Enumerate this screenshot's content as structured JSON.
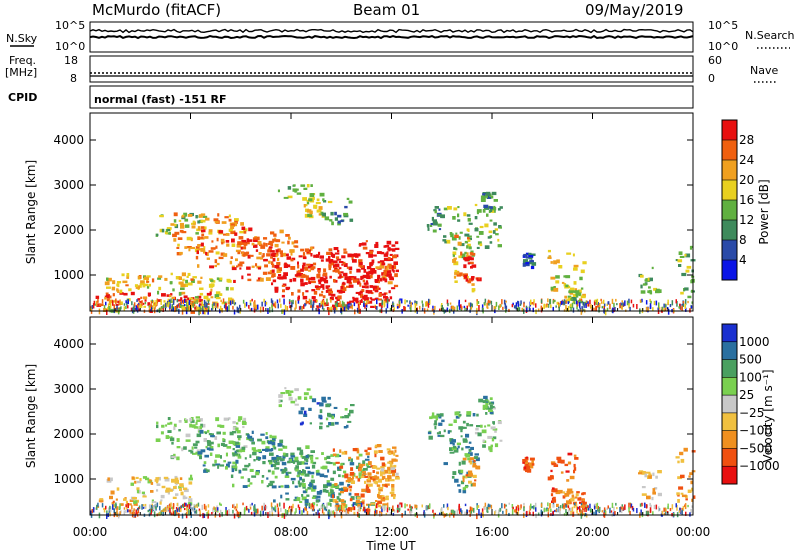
{
  "header": {
    "station": "McMurdo (fitACF)",
    "beam": "Beam 01",
    "date": "09/May/2019"
  },
  "sky_panel": {
    "left_label": "N.Sky",
    "right_label": "N.Search",
    "ticks_left": [
      "10^5",
      "10^0"
    ],
    "ticks_right": [
      "10^5",
      "10^0"
    ]
  },
  "freq_panel": {
    "left_label_1": "Freq.",
    "left_label_2": "[MHz]",
    "right_label": "Nave",
    "ticks_left": [
      "18",
      "8"
    ],
    "ticks_right": [
      "60",
      "0"
    ]
  },
  "cpid": {
    "label": "CPID",
    "text": "normal (fast) -151 RF"
  },
  "colors": {
    "power": [
      "#0a14e6",
      "#2a4aa8",
      "#3e8a5c",
      "#60b040",
      "#e8d020",
      "#f0a020",
      "#f06010",
      "#e81010"
    ],
    "velocity": [
      "#e81010",
      "#f05010",
      "#f09020",
      "#f0c040",
      "#c8c8c8",
      "#7ad050",
      "#4aa060",
      "#2a70a0",
      "#1a30d0"
    ]
  },
  "chart_data": [
    {
      "type": "heatmap",
      "name": "power",
      "ylabel": "Slant Range [km]",
      "xlabel": "",
      "xlim_hours": [
        0,
        24
      ],
      "ylim": [
        200,
        4600
      ],
      "yticks": [
        1000,
        2000,
        3000,
        4000
      ],
      "colorbar_label": "Power [dB]",
      "colorbar_ticks": [
        "28",
        "24",
        "20",
        "16",
        "12",
        "8",
        "4"
      ],
      "regions": [
        {
          "t": 0.2,
          "r": 420,
          "w": 4.6,
          "h": 220,
          "c": 7
        },
        {
          "t": 0.5,
          "r": 620,
          "w": 5.2,
          "h": 380,
          "c": 4
        },
        {
          "t": 0.6,
          "r": 900,
          "w": 3.4,
          "h": 160,
          "c": 5
        },
        {
          "t": 2.4,
          "r": 2150,
          "w": 2.2,
          "h": 250,
          "c": 3
        },
        {
          "t": 3.2,
          "r": 1950,
          "w": 3.0,
          "h": 450,
          "c": 5
        },
        {
          "t": 4.2,
          "r": 1650,
          "w": 3.6,
          "h": 450,
          "c": 6
        },
        {
          "t": 5.6,
          "r": 1350,
          "w": 3.2,
          "h": 500,
          "c": 6
        },
        {
          "t": 7.2,
          "r": 1050,
          "w": 2.8,
          "h": 550,
          "c": 7
        },
        {
          "t": 8.4,
          "r": 920,
          "w": 2.8,
          "h": 650,
          "c": 7
        },
        {
          "t": 9.6,
          "r": 1000,
          "w": 2.4,
          "h": 750,
          "c": 7
        },
        {
          "t": 10.6,
          "r": 1100,
          "w": 1.6,
          "h": 700,
          "c": 7
        },
        {
          "t": 11.2,
          "r": 1050,
          "w": 1.0,
          "h": 300,
          "c": 6
        },
        {
          "t": 7.4,
          "r": 2850,
          "w": 1.4,
          "h": 200,
          "c": 3
        },
        {
          "t": 8.3,
          "r": 2500,
          "w": 1.2,
          "h": 350,
          "c": 4
        },
        {
          "t": 9.2,
          "r": 2450,
          "w": 1.2,
          "h": 300,
          "c": 2
        },
        {
          "t": 13.4,
          "r": 2250,
          "w": 0.6,
          "h": 300,
          "c": 2
        },
        {
          "t": 14.0,
          "r": 1950,
          "w": 1.4,
          "h": 600,
          "c": 3
        },
        {
          "t": 14.4,
          "r": 1300,
          "w": 0.8,
          "h": 600,
          "c": 5
        },
        {
          "t": 14.8,
          "r": 1200,
          "w": 0.6,
          "h": 300,
          "c": 7
        },
        {
          "t": 15.3,
          "r": 2200,
          "w": 1.0,
          "h": 600,
          "c": 3
        },
        {
          "t": 15.6,
          "r": 2650,
          "w": 0.4,
          "h": 200,
          "c": 2
        },
        {
          "t": 18.2,
          "r": 1000,
          "w": 1.4,
          "h": 600,
          "c": 4
        },
        {
          "t": 18.8,
          "r": 600,
          "w": 0.8,
          "h": 200,
          "c": 3
        },
        {
          "t": 21.8,
          "r": 900,
          "w": 0.8,
          "h": 300,
          "c": 3
        },
        {
          "t": 23.3,
          "r": 1100,
          "w": 0.8,
          "h": 600,
          "c": 3
        },
        {
          "t": 17.2,
          "r": 1350,
          "w": 0.4,
          "h": 150,
          "c": 1
        }
      ]
    },
    {
      "type": "heatmap",
      "name": "velocity",
      "ylabel": "Slant Range [km]",
      "xlabel": "Time UT",
      "xlim_hours": [
        0,
        24
      ],
      "xticks": [
        "00:00",
        "04:00",
        "08:00",
        "12:00",
        "16:00",
        "20:00",
        "00:00"
      ],
      "ylim": [
        200,
        4600
      ],
      "yticks": [
        1000,
        2000,
        3000,
        4000
      ],
      "colorbar_label": "Velocity [m s⁻¹]",
      "colorbar_ticks": [
        "1000",
        "500",
        "100",
        "25",
        "−25",
        "−100",
        "−500",
        "−1000"
      ],
      "regions": [
        {
          "t": 0.2,
          "r": 420,
          "w": 1.8,
          "h": 220,
          "c": 2
        },
        {
          "t": 1.6,
          "r": 700,
          "w": 2.4,
          "h": 400,
          "c": 4
        },
        {
          "t": 0.6,
          "r": 900,
          "w": 3.4,
          "h": 160,
          "c": 3
        },
        {
          "t": 2.4,
          "r": 2150,
          "w": 2.2,
          "h": 250,
          "c": 5
        },
        {
          "t": 3.2,
          "r": 1950,
          "w": 3.0,
          "h": 450,
          "c": 5
        },
        {
          "t": 4.2,
          "r": 1650,
          "w": 3.6,
          "h": 450,
          "c": 6
        },
        {
          "t": 5.6,
          "r": 1350,
          "w": 3.2,
          "h": 500,
          "c": 6
        },
        {
          "t": 7.2,
          "r": 1050,
          "w": 2.8,
          "h": 550,
          "c": 6
        },
        {
          "t": 8.4,
          "r": 920,
          "w": 2.8,
          "h": 650,
          "c": 6
        },
        {
          "t": 9.6,
          "r": 1000,
          "w": 2.4,
          "h": 750,
          "c": 2
        },
        {
          "t": 10.6,
          "r": 1100,
          "w": 1.6,
          "h": 700,
          "c": 2
        },
        {
          "t": 11.2,
          "r": 1050,
          "w": 1.0,
          "h": 300,
          "c": 3
        },
        {
          "t": 7.4,
          "r": 2850,
          "w": 1.4,
          "h": 200,
          "c": 5
        },
        {
          "t": 8.3,
          "r": 2500,
          "w": 1.2,
          "h": 350,
          "c": 7
        },
        {
          "t": 9.2,
          "r": 2450,
          "w": 1.2,
          "h": 300,
          "c": 6
        },
        {
          "t": 13.4,
          "r": 2250,
          "w": 0.6,
          "h": 300,
          "c": 6
        },
        {
          "t": 14.0,
          "r": 1950,
          "w": 1.4,
          "h": 600,
          "c": 6
        },
        {
          "t": 14.4,
          "r": 1300,
          "w": 0.8,
          "h": 600,
          "c": 6
        },
        {
          "t": 14.8,
          "r": 1200,
          "w": 0.6,
          "h": 300,
          "c": 2
        },
        {
          "t": 15.3,
          "r": 2200,
          "w": 1.0,
          "h": 600,
          "c": 5
        },
        {
          "t": 15.6,
          "r": 2650,
          "w": 0.4,
          "h": 200,
          "c": 6
        },
        {
          "t": 18.2,
          "r": 1000,
          "w": 1.4,
          "h": 600,
          "c": 1
        },
        {
          "t": 18.8,
          "r": 600,
          "w": 0.8,
          "h": 200,
          "c": 2
        },
        {
          "t": 21.8,
          "r": 900,
          "w": 0.8,
          "h": 300,
          "c": 3
        },
        {
          "t": 23.3,
          "r": 1100,
          "w": 0.8,
          "h": 600,
          "c": 2
        },
        {
          "t": 17.2,
          "r": 1350,
          "w": 0.4,
          "h": 150,
          "c": 1
        }
      ]
    }
  ]
}
